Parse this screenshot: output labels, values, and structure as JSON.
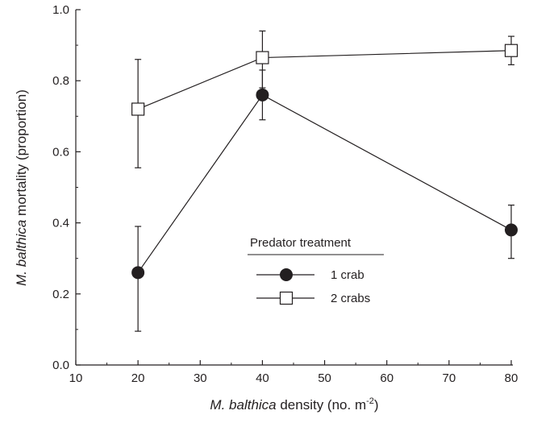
{
  "chart_data": {
    "type": "line",
    "xlabel": {
      "species": "M. balthica",
      "rest": " density (no. m",
      "superscript": "-2",
      "close": ")"
    },
    "ylabel": {
      "species": "M. balthica",
      "rest": " mortality (proportion)"
    },
    "xlim": [
      10,
      80
    ],
    "ylim": [
      0.0,
      1.0
    ],
    "x_ticks": [
      "10",
      "20",
      "30",
      "40",
      "50",
      "60",
      "70",
      "80"
    ],
    "y_ticks": [
      "0.0",
      "0.2",
      "0.4",
      "0.6",
      "0.8",
      "1.0"
    ],
    "grid": false,
    "legend": {
      "title": "Predator treatment",
      "placement": "center-right"
    },
    "series": [
      {
        "name": "1 crab",
        "marker": "filled-circle",
        "x": [
          20,
          40,
          80
        ],
        "y": [
          0.26,
          0.76,
          0.38
        ],
        "error_low": [
          0.095,
          0.69,
          0.3
        ],
        "error_high": [
          0.39,
          0.83,
          0.45
        ]
      },
      {
        "name": "2 crabs",
        "marker": "open-square",
        "x": [
          20,
          40,
          80
        ],
        "y": [
          0.72,
          0.865,
          0.885
        ],
        "error_low": [
          0.555,
          0.78,
          0.845
        ],
        "error_high": [
          0.86,
          0.94,
          0.925
        ]
      }
    ]
  }
}
